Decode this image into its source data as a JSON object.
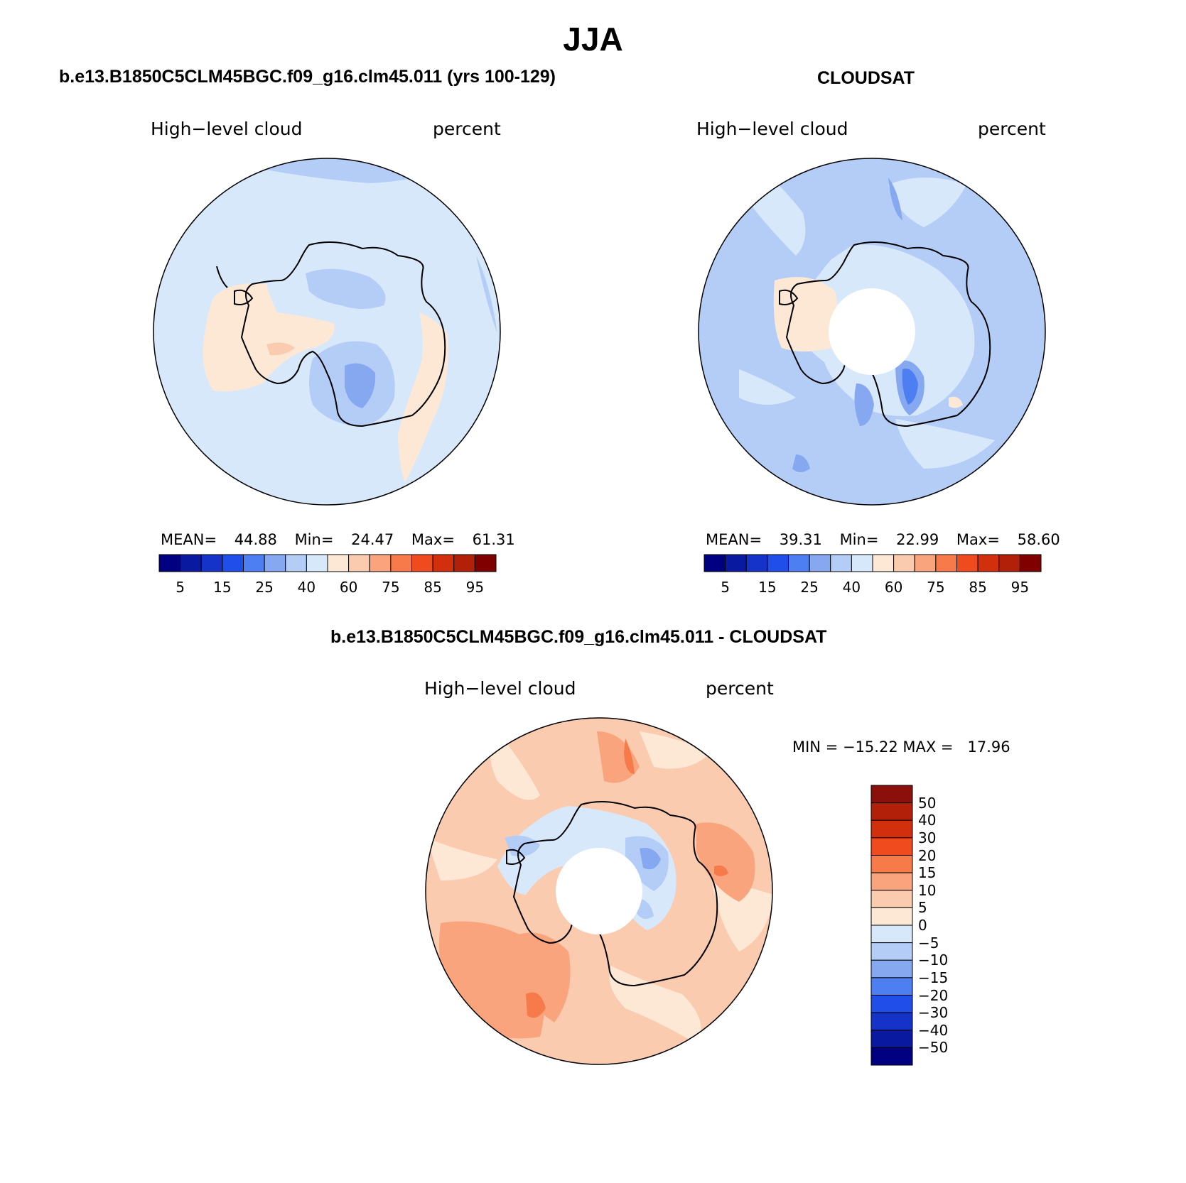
{
  "figure": {
    "season_title": "JJA",
    "panels": [
      {
        "id": "model",
        "case_title": "b.e13.B1850C5CLM45BGC.f09_g16.clm45.011 (yrs 100-129)",
        "variable_label": "High−level cloud",
        "units_label": "percent",
        "stats": {
          "mean_label": "MEAN=",
          "mean": "44.88",
          "min_label": "Min=",
          "min": "24.47",
          "max_label": "Max=",
          "max": "61.31"
        }
      },
      {
        "id": "obs",
        "case_title": "CLOUDSAT",
        "variable_label": "High−level cloud",
        "units_label": "percent",
        "stats": {
          "mean_label": "MEAN=",
          "mean": "39.31",
          "min_label": "Min=",
          "min": "22.99",
          "max_label": "Max=",
          "max": "58.60"
        }
      }
    ],
    "diff_panel": {
      "case_title": "b.e13.B1850C5CLM45BGC.f09_g16.clm45.011 - CLOUDSAT",
      "variable_label": "High−level cloud",
      "units_label": "percent",
      "minmax_text": "MIN = −15.22 MAX =   17.96"
    }
  },
  "colorbars": {
    "abs": {
      "colors": [
        "#000080",
        "#0a1aa0",
        "#1533c8",
        "#1f4ee8",
        "#4d7ef2",
        "#86a8f0",
        "#b4cdf7",
        "#d8e8fb",
        "#fde8d6",
        "#fbcbb0",
        "#f9a47c",
        "#f67a4a",
        "#ef4b1e",
        "#d2300d",
        "#b3200a",
        "#800000"
      ],
      "tick_labels": [
        "5",
        "15",
        "25",
        "40",
        "60",
        "75",
        "85",
        "95"
      ]
    },
    "diff": {
      "colors_top_to_bottom": [
        "#8b0f0a",
        "#b3200a",
        "#d2300d",
        "#ef4b1e",
        "#f67a4a",
        "#f9a47c",
        "#fbcbb0",
        "#fde8d6",
        "#d8e8fb",
        "#b4cdf7",
        "#86a8f0",
        "#4d7ef2",
        "#1f4ee8",
        "#1533c8",
        "#0a1aa0",
        "#000080"
      ],
      "tick_labels": [
        "50",
        "40",
        "30",
        "20",
        "15",
        "10",
        "5",
        "0",
        "−5",
        "−10",
        "−15",
        "−20",
        "−30",
        "−40",
        "−50"
      ]
    }
  },
  "map_colors": {
    "coastline": "#000000",
    "land_blank": "#ffffff",
    "light_blue": "#d8e8fb",
    "blue_40": "#b4cdf7",
    "blue_25": "#86a8f0",
    "blue_15": "#4d7ef2",
    "peach_60": "#fde8d6",
    "salmon_75": "#fbcbb0",
    "orange_85": "#f9a47c",
    "orange_90": "#f67a4a"
  }
}
